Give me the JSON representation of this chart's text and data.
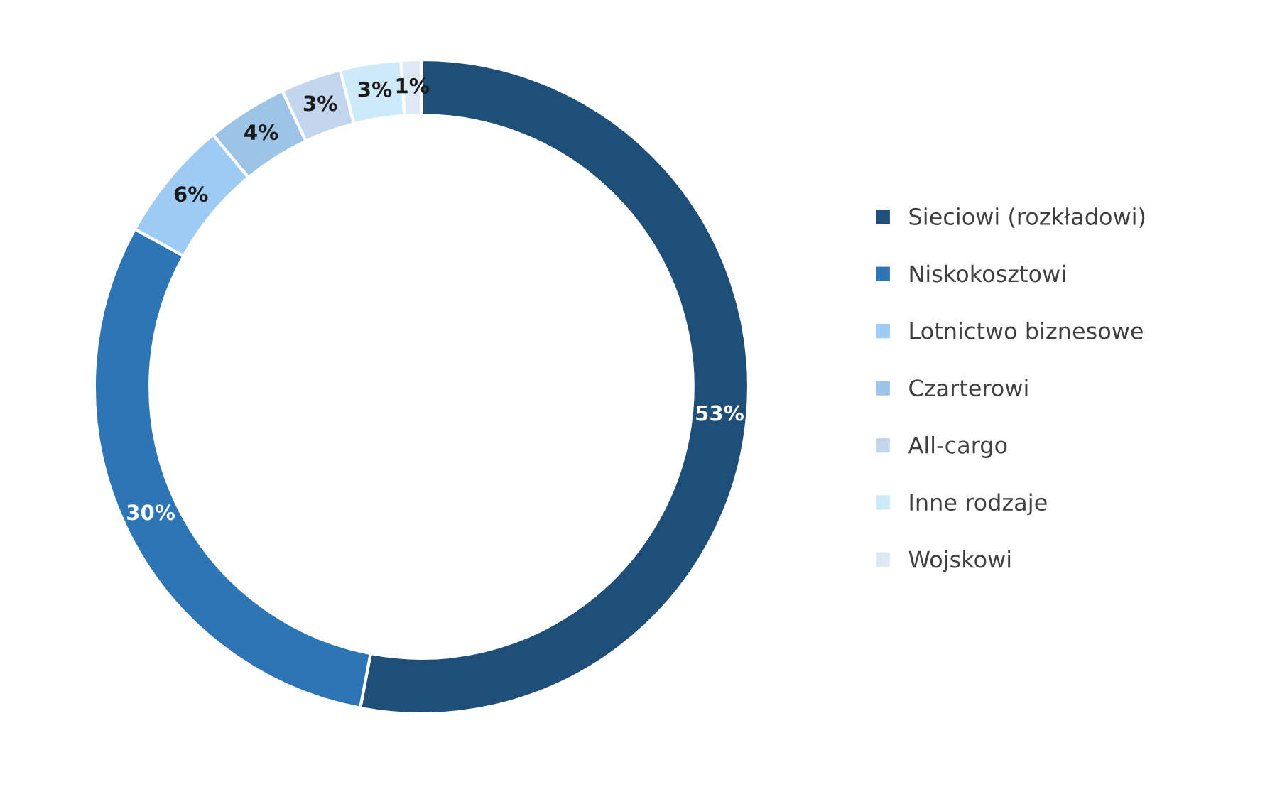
{
  "chart_data": {
    "type": "donut",
    "categories": [
      "Sieciowi (rozkładowi)",
      "Niskokosztowi",
      "Lotnictwo biznesowe",
      "Czarterowi",
      "All-cargo",
      "Inne rodzaje",
      "Wojskowi"
    ],
    "values": [
      53,
      30,
      6,
      4,
      3,
      3,
      1
    ],
    "colors": [
      "#1f4e79",
      "#2e75b6",
      "#9dcbf3",
      "#9dc3e6",
      "#c2d7ee",
      "#cdeafa",
      "#dde9f5"
    ],
    "value_labels": [
      "53%",
      "30%",
      "6%",
      "4%",
      "3%",
      "3%",
      "1%"
    ],
    "legend": "right"
  }
}
